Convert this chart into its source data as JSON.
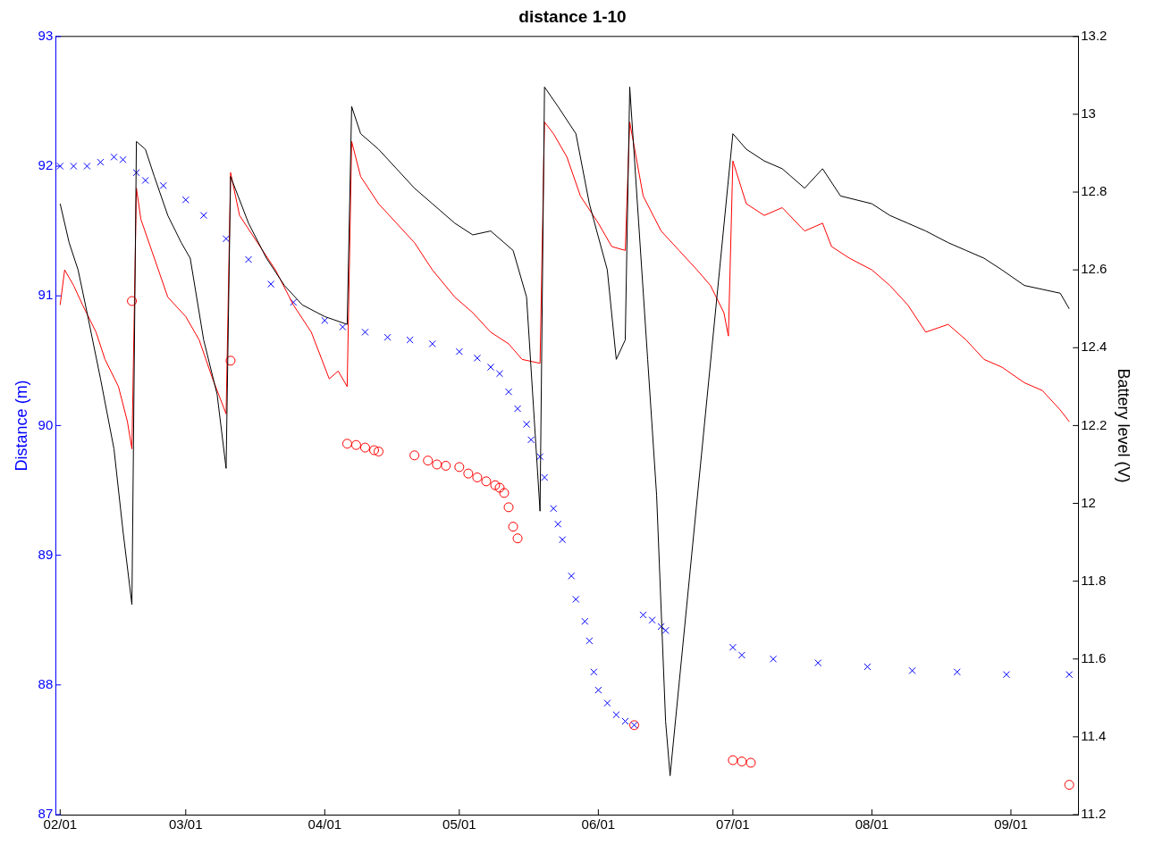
{
  "chart_data": {
    "type": "line",
    "title": "distance 1-10",
    "ylabel": "Distance (m)",
    "y2label": "Battery level (V)",
    "xlim": [
      "--01-31",
      "--09-16"
    ],
    "xticks": [
      {
        "value": "--02-01",
        "label": "02/01"
      },
      {
        "value": "--03-01",
        "label": "03/01"
      },
      {
        "value": "--04-01",
        "label": "04/01"
      },
      {
        "value": "--05-01",
        "label": "05/01"
      },
      {
        "value": "--06-01",
        "label": "06/01"
      },
      {
        "value": "--07-01",
        "label": "07/01"
      },
      {
        "value": "--08-01",
        "label": "08/01"
      },
      {
        "value": "--09-01",
        "label": "09/01"
      }
    ],
    "ylim": [
      87,
      93
    ],
    "yticks": [
      87,
      88,
      89,
      90,
      91,
      92,
      93
    ],
    "y2lim": [
      11.2,
      13.2
    ],
    "y2ticks": [
      11.2,
      11.4,
      11.6,
      11.8,
      12,
      12.2,
      12.4,
      12.6,
      12.8,
      13,
      13.2
    ],
    "grid": false,
    "legend": false,
    "series": [
      {
        "type": "line",
        "axis": "y2",
        "color": "#000000",
        "marker": "none",
        "x": [
          "--02-01",
          "--02-03",
          "--02-05",
          "--02-07",
          "--02-10",
          "--02-13",
          "--02-15",
          "--02-17",
          "--02-18",
          "--02-20",
          "--02-22",
          "--02-25",
          "--02-28",
          "--03-02",
          "--03-05",
          "--03-08",
          "--03-10",
          "--03-11",
          "--03-15",
          "--03-19",
          "--03-23",
          "--03-27",
          "--04-01",
          "--04-06",
          "--04-07",
          "--04-09",
          "--04-13",
          "--04-17",
          "--04-21",
          "--04-25",
          "--04-30",
          "--05-04",
          "--05-08",
          "--05-13",
          "--05-16",
          "--05-19",
          "--05-20",
          "--05-23",
          "--05-27",
          "--05-30",
          "--06-03",
          "--06-05",
          "--06-07",
          "--06-08",
          "--06-10",
          "--06-12",
          "--06-14",
          "--06-16",
          "--06-17",
          "--07-01",
          "--07-04",
          "--07-08",
          "--07-12",
          "--07-17",
          "--07-21",
          "--07-25",
          "--08-01",
          "--08-05",
          "--08-09",
          "--08-13",
          "--08-18",
          "--08-22",
          "--08-26",
          "--08-30",
          "--09-04",
          "--09-08",
          "--09-12",
          "--09-14"
        ],
        "values": [
          12.77,
          12.67,
          12.6,
          12.49,
          12.32,
          12.14,
          11.93,
          11.74,
          12.93,
          12.91,
          12.84,
          12.74,
          12.67,
          12.63,
          12.42,
          12.28,
          12.09,
          12.84,
          12.72,
          12.63,
          12.56,
          12.51,
          12.48,
          12.46,
          13.02,
          12.95,
          12.91,
          12.86,
          12.81,
          12.77,
          12.72,
          12.69,
          12.7,
          12.65,
          12.53,
          11.98,
          13.07,
          13.02,
          12.95,
          12.77,
          12.6,
          12.37,
          12.42,
          13.07,
          12.72,
          12.37,
          12.02,
          11.44,
          11.3,
          12.95,
          12.91,
          12.88,
          12.86,
          12.81,
          12.86,
          12.79,
          12.77,
          12.74,
          12.72,
          12.7,
          12.67,
          12.65,
          12.63,
          12.6,
          12.56,
          12.55,
          12.54,
          12.5
        ]
      },
      {
        "type": "line",
        "axis": "y2",
        "color": "#ff0000",
        "marker": "none",
        "x": [
          "--02-01",
          "--02-02",
          "--02-04",
          "--02-06",
          "--02-09",
          "--02-11",
          "--02-14",
          "--02-16",
          "--02-17",
          "--02-18",
          "--02-19",
          "--02-22",
          "--02-25",
          "--03-01",
          "--03-04",
          "--03-07",
          "--03-10",
          "--03-11",
          "--03-13",
          "--03-17",
          "--03-21",
          "--03-25",
          "--03-29",
          "--04-02",
          "--04-04",
          "--04-06",
          "--04-07",
          "--04-09",
          "--04-13",
          "--04-17",
          "--04-21",
          "--04-25",
          "--04-30",
          "--05-04",
          "--05-08",
          "--05-12",
          "--05-15",
          "--05-19",
          "--05-20",
          "--05-22",
          "--05-25",
          "--05-28",
          "--06-01",
          "--06-04",
          "--06-07",
          "--06-08",
          "--06-11",
          "--06-15",
          "--06-19",
          "--06-23",
          "--06-26",
          "--06-29",
          "--06-30",
          "--07-01",
          "--07-04",
          "--07-08",
          "--07-12",
          "--07-17",
          "--07-21",
          "--07-23",
          "--07-27",
          "--08-01",
          "--08-05",
          "--08-09",
          "--08-13",
          "--08-18",
          "--08-22",
          "--08-26",
          "--08-30",
          "--09-04",
          "--09-08",
          "--09-12",
          "--09-14"
        ],
        "values": [
          12.51,
          12.6,
          12.56,
          12.51,
          12.44,
          12.37,
          12.3,
          12.21,
          12.14,
          12.81,
          12.73,
          12.63,
          12.53,
          12.48,
          12.42,
          12.32,
          12.23,
          12.85,
          12.74,
          12.67,
          12.6,
          12.51,
          12.44,
          12.32,
          12.34,
          12.3,
          12.93,
          12.84,
          12.77,
          12.72,
          12.67,
          12.6,
          12.53,
          12.49,
          12.44,
          12.41,
          12.37,
          12.36,
          12.98,
          12.95,
          12.89,
          12.79,
          12.72,
          12.66,
          12.65,
          12.98,
          12.79,
          12.7,
          12.65,
          12.6,
          12.56,
          12.49,
          12.43,
          12.88,
          12.77,
          12.74,
          12.76,
          12.7,
          12.72,
          12.66,
          12.63,
          12.6,
          12.56,
          12.51,
          12.44,
          12.46,
          12.42,
          12.37,
          12.35,
          12.31,
          12.29,
          12.24,
          12.21
        ]
      },
      {
        "type": "scatter",
        "color": "#0000ff",
        "marker": "cross",
        "x": [
          "--02-01",
          "--02-04",
          "--02-07",
          "--02-10",
          "--02-13",
          "--02-15",
          "--02-18",
          "--02-20",
          "--02-24",
          "--03-01",
          "--03-05",
          "--03-10",
          "--03-15",
          "--03-20",
          "--03-25",
          "--04-01",
          "--04-05",
          "--04-10",
          "--04-15",
          "--04-20",
          "--04-25",
          "--05-01",
          "--05-05",
          "--05-08",
          "--05-10",
          "--05-12",
          "--05-14",
          "--05-16",
          "--05-17",
          "--05-19",
          "--05-20",
          "--05-22",
          "--05-23",
          "--05-24",
          "--05-26",
          "--05-27",
          "--05-29",
          "--05-30",
          "--05-31",
          "--06-01",
          "--06-03",
          "--06-05",
          "--06-07",
          "--06-09",
          "--06-11",
          "--06-13",
          "--06-15",
          "--06-16",
          "--07-01",
          "--07-03",
          "--07-10",
          "--07-20",
          "--07-31",
          "--08-10",
          "--08-20",
          "--08-31",
          "--09-14"
        ],
        "values": [
          92.0,
          92.0,
          92.0,
          92.03,
          92.07,
          92.05,
          91.95,
          91.89,
          91.85,
          91.74,
          91.62,
          91.44,
          91.28,
          91.09,
          90.95,
          90.81,
          90.76,
          90.72,
          90.68,
          90.66,
          90.63,
          90.57,
          90.52,
          90.45,
          90.4,
          90.26,
          90.13,
          90.01,
          89.89,
          89.76,
          89.6,
          89.36,
          89.24,
          89.12,
          88.84,
          88.66,
          88.49,
          88.34,
          88.1,
          87.96,
          87.86,
          87.77,
          87.72,
          87.69,
          88.54,
          88.5,
          88.45,
          88.42,
          88.29,
          88.23,
          88.2,
          88.17,
          88.14,
          88.11,
          88.1,
          88.08,
          88.08
        ]
      },
      {
        "type": "scatter",
        "color": "#ff0000",
        "marker": "circle",
        "x": [
          "--02-17",
          "--03-11",
          "--04-06",
          "--04-08",
          "--04-10",
          "--04-12",
          "--04-13",
          "--04-21",
          "--04-24",
          "--04-26",
          "--04-28",
          "--05-01",
          "--05-03",
          "--05-05",
          "--05-07",
          "--05-09",
          "--05-10",
          "--05-11",
          "--05-12",
          "--05-13",
          "--05-14",
          "--06-09",
          "--07-01",
          "--07-03",
          "--07-05",
          "--09-14"
        ],
        "values": [
          90.96,
          90.5,
          89.86,
          89.85,
          89.83,
          89.81,
          89.8,
          89.77,
          89.73,
          89.7,
          89.69,
          89.68,
          89.63,
          89.6,
          89.57,
          89.54,
          89.52,
          89.48,
          89.37,
          89.22,
          89.13,
          87.69,
          87.42,
          87.41,
          87.4,
          87.23
        ]
      }
    ]
  }
}
